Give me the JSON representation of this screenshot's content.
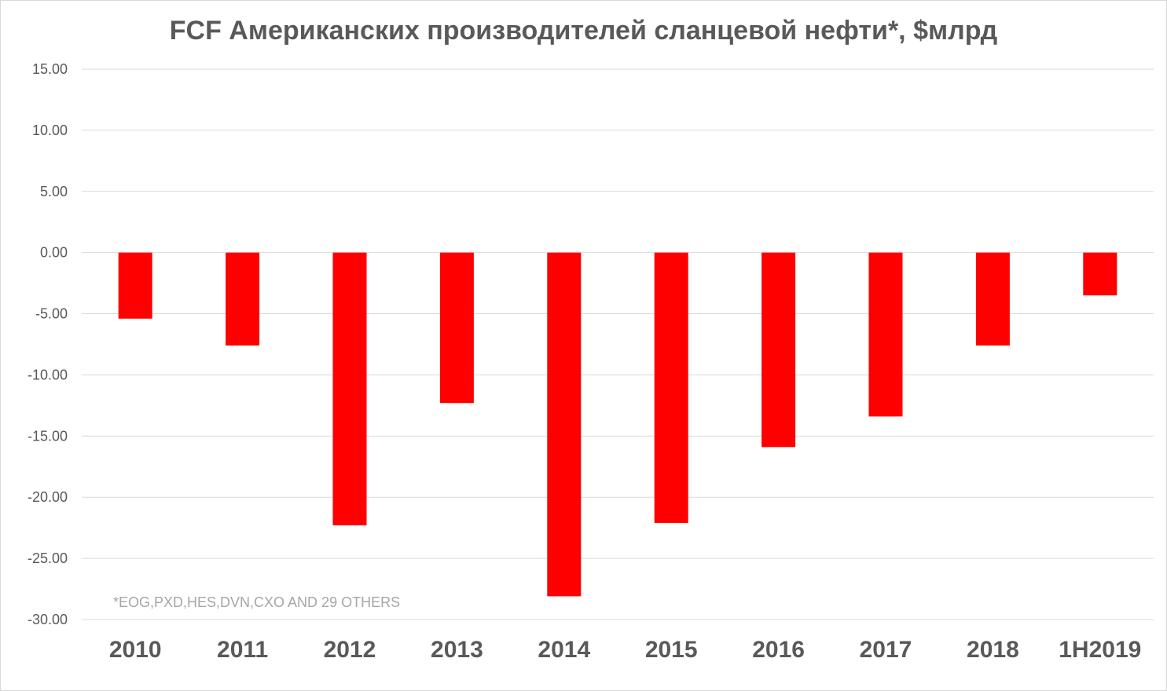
{
  "chart_data": {
    "type": "bar",
    "title": "FCF Американских производителей сланцевой нефти*, $млрд",
    "categories": [
      "2010",
      "2011",
      "2012",
      "2013",
      "2014",
      "2015",
      "2016",
      "2017",
      "2018",
      "1H2019"
    ],
    "series": [
      {
        "values": [
          -5.4,
          -7.6,
          -22.3,
          -12.3,
          -28.1,
          -22.1,
          -15.9,
          -13.4,
          -7.6,
          -3.5
        ],
        "color": "#ff0000"
      }
    ],
    "ylim": [
      -30,
      15
    ],
    "yticks": [
      "15.00",
      "10.00",
      "5.00",
      "0.00",
      "-5.00",
      "-10.00",
      "-15.00",
      "-20.00",
      "-25.00",
      "-30.00"
    ],
    "xlabel": "",
    "ylabel": "",
    "grid": true,
    "legend": "none",
    "annotation": "*EOG,PXD,HES,DVN,CXO AND 29 OTHERS",
    "colors": {
      "bar": "#ff0000",
      "grid": "#d9d9d9",
      "text": "#595959",
      "footnote": "#a6a6a6"
    }
  }
}
